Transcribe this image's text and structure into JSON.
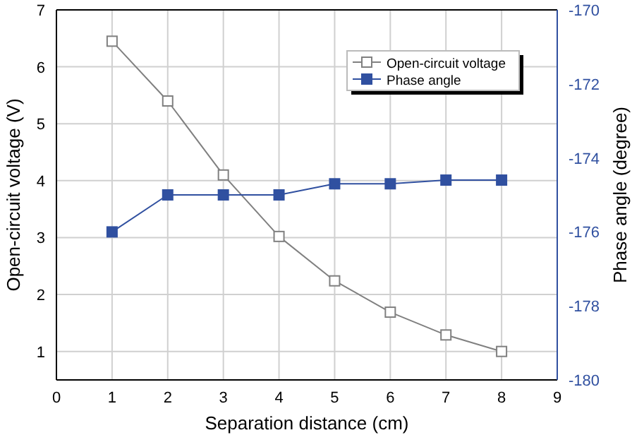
{
  "chart_data": {
    "type": "line",
    "xlabel": "Separation distance (cm)",
    "ylabel": "Open-circuit voltage (V)",
    "y2label": "Phase angle (degree)",
    "x": [
      1,
      2,
      3,
      4,
      5,
      6,
      7,
      8
    ],
    "series": [
      {
        "name": "Open-circuit voltage",
        "color": "#808080",
        "marker": "square",
        "values": [
          6.45,
          5.4,
          4.1,
          3.02,
          2.24,
          1.69,
          1.29,
          1.0
        ]
      },
      {
        "name": "Phase angle",
        "color": "#3050a0",
        "marker": "square",
        "axis": "y2",
        "values": [
          -176.0,
          -175.0,
          -175.0,
          -175.0,
          -174.7,
          -174.7,
          -174.6,
          -174.6
        ]
      }
    ],
    "xlim": [
      0,
      9
    ],
    "xticks": [
      0,
      1,
      2,
      3,
      4,
      5,
      6,
      7,
      8,
      9
    ],
    "ylim": [
      0.5,
      7
    ],
    "yticks": [
      1,
      2,
      3,
      4,
      5,
      6,
      7
    ],
    "y2lim": [
      -180,
      -170
    ],
    "y2ticks": [
      -180,
      -178,
      -176,
      -174,
      -172,
      -170
    ],
    "grid": true,
    "legend": "top right"
  }
}
